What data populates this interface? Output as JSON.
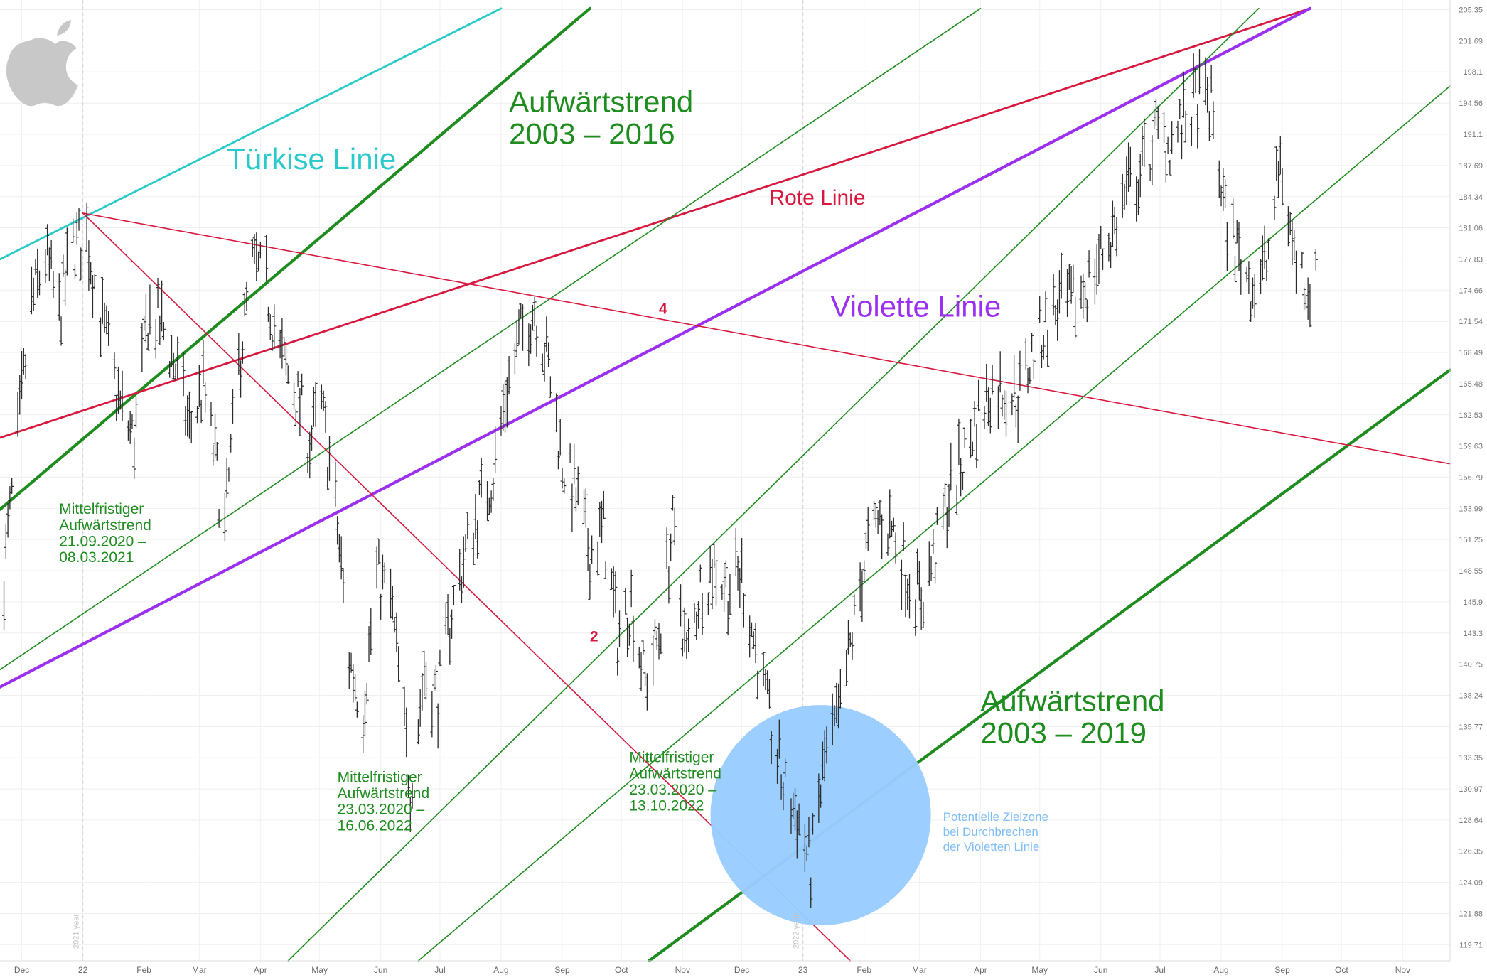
{
  "chart_data": {
    "type": "ohlc",
    "y_scale": "log",
    "ylim": [
      118.6,
      206.5
    ],
    "xlim": [
      "2021-11-20",
      "2023-11-25"
    ],
    "grid": true,
    "y_ticks": [
      "205.35",
      "201.69",
      "198.1",
      "194.56",
      "191.1",
      "187.69",
      "184.34",
      "181.06",
      "177.83",
      "174.66",
      "171.54",
      "168.49",
      "165.48",
      "162.53",
      "159.63",
      "156.79",
      "153.99",
      "151.25",
      "148.55",
      "145.9",
      "143.3",
      "140.75",
      "138.24",
      "135.77",
      "133.35",
      "130.97",
      "128.64",
      "126.35",
      "124.09",
      "121.88",
      "119.71"
    ],
    "x_ticks": [
      {
        "date": "2021-12-01",
        "label": "Dec"
      },
      {
        "date": "2022-01-01",
        "label": "22"
      },
      {
        "date": "2022-02-01",
        "label": "Feb"
      },
      {
        "date": "2022-03-01",
        "label": "Mar"
      },
      {
        "date": "2022-04-01",
        "label": "Apr"
      },
      {
        "date": "2022-05-01",
        "label": "May"
      },
      {
        "date": "2022-06-01",
        "label": "Jun"
      },
      {
        "date": "2022-07-01",
        "label": "Jul"
      },
      {
        "date": "2022-08-01",
        "label": "Aug"
      },
      {
        "date": "2022-09-01",
        "label": "Sep"
      },
      {
        "date": "2022-10-01",
        "label": "Oct"
      },
      {
        "date": "2022-11-01",
        "label": "Nov"
      },
      {
        "date": "2022-12-01",
        "label": "Dec"
      },
      {
        "date": "2023-01-01",
        "label": "23"
      },
      {
        "date": "2023-02-01",
        "label": "Feb"
      },
      {
        "date": "2023-03-01",
        "label": "Mar"
      },
      {
        "date": "2023-04-01",
        "label": "Apr"
      },
      {
        "date": "2023-05-01",
        "label": "May"
      },
      {
        "date": "2023-06-01",
        "label": "Jun"
      },
      {
        "date": "2023-07-01",
        "label": "Jul"
      },
      {
        "date": "2023-08-01",
        "label": "Aug"
      },
      {
        "date": "2023-09-01",
        "label": "Sep"
      },
      {
        "date": "2023-10-01",
        "label": "Oct"
      },
      {
        "date": "2023-11-01",
        "label": "Nov"
      }
    ],
    "year_markers": [
      {
        "date": "2022-01-01",
        "label": "2021 year"
      },
      {
        "date": "2023-01-01",
        "label": "2022 year"
      }
    ],
    "price_path": [
      [
        "2021-11-22",
        148
      ],
      [
        "2021-11-29",
        160
      ],
      [
        "2021-12-06",
        173
      ],
      [
        "2021-12-13",
        178
      ],
      [
        "2021-12-20",
        172
      ],
      [
        "2021-12-27",
        179
      ],
      [
        "2022-01-03",
        180
      ],
      [
        "2022-01-10",
        172
      ],
      [
        "2022-01-20",
        163
      ],
      [
        "2022-01-27",
        160
      ],
      [
        "2022-02-03",
        172
      ],
      [
        "2022-02-10",
        171
      ],
      [
        "2022-02-17",
        167
      ],
      [
        "2022-02-24",
        161
      ],
      [
        "2022-03-03",
        165
      ],
      [
        "2022-03-10",
        157
      ],
      [
        "2022-03-14",
        152
      ],
      [
        "2022-03-21",
        167
      ],
      [
        "2022-03-28",
        177
      ],
      [
        "2022-04-04",
        175
      ],
      [
        "2022-04-11",
        168
      ],
      [
        "2022-04-18",
        165
      ],
      [
        "2022-04-26",
        160
      ],
      [
        "2022-05-02",
        163
      ],
      [
        "2022-05-09",
        154
      ],
      [
        "2022-05-16",
        141
      ],
      [
        "2022-05-23",
        137
      ],
      [
        "2022-05-30",
        148
      ],
      [
        "2022-06-06",
        146
      ],
      [
        "2022-06-16",
        131
      ],
      [
        "2022-06-23",
        140
      ],
      [
        "2022-06-30",
        138
      ],
      [
        "2022-07-07",
        145
      ],
      [
        "2022-07-14",
        150
      ],
      [
        "2022-07-21",
        154
      ],
      [
        "2022-07-28",
        157
      ],
      [
        "2022-08-04",
        165
      ],
      [
        "2022-08-11",
        170
      ],
      [
        "2022-08-18",
        173
      ],
      [
        "2022-08-25",
        167
      ],
      [
        "2022-09-01",
        158
      ],
      [
        "2022-09-08",
        155
      ],
      [
        "2022-09-15",
        150
      ],
      [
        "2022-09-22",
        152
      ],
      [
        "2022-09-29",
        143
      ],
      [
        "2022-10-06",
        146
      ],
      [
        "2022-10-13",
        139
      ],
      [
        "2022-10-20",
        143
      ],
      [
        "2022-10-27",
        152
      ],
      [
        "2022-11-03",
        141
      ],
      [
        "2022-11-10",
        147
      ],
      [
        "2022-11-17",
        149
      ],
      [
        "2022-11-24",
        147
      ],
      [
        "2022-12-01",
        148
      ],
      [
        "2022-12-08",
        142
      ],
      [
        "2022-12-15",
        136
      ],
      [
        "2022-12-22",
        131
      ],
      [
        "2022-12-29",
        129
      ],
      [
        "2023-01-05",
        125
      ],
      [
        "2023-01-12",
        133
      ],
      [
        "2023-01-19",
        136
      ],
      [
        "2023-01-26",
        143
      ],
      [
        "2023-02-02",
        150
      ],
      [
        "2023-02-09",
        153
      ],
      [
        "2023-02-16",
        152
      ],
      [
        "2023-02-23",
        148
      ],
      [
        "2023-03-02",
        146
      ],
      [
        "2023-03-09",
        150
      ],
      [
        "2023-03-16",
        155
      ],
      [
        "2023-03-23",
        158
      ],
      [
        "2023-03-30",
        162
      ],
      [
        "2023-04-06",
        165
      ],
      [
        "2023-04-13",
        165
      ],
      [
        "2023-04-20",
        164
      ],
      [
        "2023-04-27",
        168
      ],
      [
        "2023-05-04",
        171
      ],
      [
        "2023-05-11",
        173
      ],
      [
        "2023-05-18",
        173
      ],
      [
        "2023-05-25",
        175
      ],
      [
        "2023-06-01",
        178
      ],
      [
        "2023-06-08",
        181
      ],
      [
        "2023-06-15",
        185
      ],
      [
        "2023-06-22",
        187
      ],
      [
        "2023-06-29",
        191
      ],
      [
        "2023-07-06",
        190
      ],
      [
        "2023-07-13",
        192
      ],
      [
        "2023-07-20",
        195
      ],
      [
        "2023-07-27",
        194
      ],
      [
        "2023-08-03",
        182
      ],
      [
        "2023-08-10",
        178
      ],
      [
        "2023-08-17",
        175
      ],
      [
        "2023-08-24",
        177
      ],
      [
        "2023-08-31",
        188
      ],
      [
        "2023-09-07",
        178
      ],
      [
        "2023-09-14",
        175
      ],
      [
        "2023-09-18",
        175
      ]
    ],
    "lines": [
      {
        "name": "Türkise Linie",
        "color": "#29c9cc",
        "weight": "medium",
        "points": [
          [
            "2021-11-20",
            177.8
          ],
          [
            "2022-08-01",
            205.5
          ]
        ]
      },
      {
        "name": "Aufwärtstrend 2003 – 2016",
        "color": "#1f8c1f",
        "weight": "heavy",
        "points": [
          [
            "2021-11-20",
            153.9
          ],
          [
            "2022-09-15",
            205.5
          ]
        ]
      },
      {
        "name": "Rote Linie",
        "color": "#d6173e",
        "weight": "medium",
        "points": [
          [
            "2021-11-20",
            160.4
          ],
          [
            "2023-09-15",
            205.5
          ]
        ]
      },
      {
        "name": "Violette Linie",
        "color": "#9b30f0",
        "weight": "heavy",
        "points": [
          [
            "2021-11-20",
            138.9
          ],
          [
            "2023-09-15",
            205.5
          ]
        ]
      },
      {
        "name": "Aufwärtstrend 2003 – 2019",
        "color": "#1f8c1f",
        "weight": "heavy",
        "points": [
          [
            "2022-10-15",
            118.6
          ],
          [
            "2023-11-25",
            166.8
          ]
        ]
      },
      {
        "name": "Mittelfristiger Aufwärtstrend 21.09.2020 – 08.03.2021",
        "color": "#1f8c1f",
        "weight": "thin",
        "points": [
          [
            "2021-11-20",
            140.3
          ],
          [
            "2023-04-01",
            205.5
          ]
        ]
      },
      {
        "name": "Mittelfristiger Aufwärtstrend 23.03.2020 – 16.06.2022",
        "color": "#1f8c1f",
        "weight": "thin",
        "points": [
          [
            "2022-04-15",
            118.6
          ],
          [
            "2023-08-20",
            205.5
          ]
        ]
      },
      {
        "name": "Mittelfristiger Aufwärtstrend 23.03.2020 – 13.10.2022",
        "color": "#1f8c1f",
        "weight": "thin",
        "points": [
          [
            "2022-06-20",
            118.6
          ],
          [
            "2023-11-25",
            196.5
          ]
        ]
      },
      {
        "name": "",
        "color": "#d6173e",
        "weight": "thin",
        "points": [
          [
            "2022-01-01",
            182.6
          ],
          [
            "2023-11-25",
            158.0
          ]
        ]
      },
      {
        "name": "",
        "color": "#d6173e",
        "weight": "thin",
        "points": [
          [
            "2022-01-01",
            182.6
          ],
          [
            "2023-01-25",
            118.6
          ]
        ]
      }
    ],
    "zone": {
      "label_lines": [
        "Potentielle Zielzone",
        "bei Durchbrechen",
        "der Violetten Linie"
      ],
      "center": [
        "2023-01-10",
        129.0
      ],
      "color": "#99ccff"
    },
    "annotations": [
      {
        "text_lines": [
          "Türkise Linie"
        ],
        "color": "#29c9cc",
        "size": "large",
        "at": [
          "2022-03-15",
          187.3
        ]
      },
      {
        "text_lines": [
          "Aufwärtstrend",
          "2003 – 2016"
        ],
        "color": "#1f8c1f",
        "size": "large",
        "at": [
          "2022-08-05",
          193.6
        ]
      },
      {
        "text_lines": [
          "Rote Linie"
        ],
        "color": "#d6173e",
        "size": "medium",
        "at": [
          "2022-12-15",
          183.5
        ]
      },
      {
        "text_lines": [
          "Violette Linie"
        ],
        "color": "#9b30f0",
        "size": "large",
        "at": [
          "2023-01-15",
          172.0
        ]
      },
      {
        "text_lines": [
          "Aufwärtstrend",
          "2003 – 2019"
        ],
        "color": "#1f8c1f",
        "size": "large",
        "at": [
          "2023-04-01",
          137.0
        ]
      },
      {
        "text_lines": [
          "Mittelfristiger",
          "Aufwärtstrend",
          "21.09.2020 –",
          "08.03.2021"
        ],
        "color": "#1f8c1f",
        "size": "small",
        "at": [
          "2021-12-20",
          153.5
        ]
      },
      {
        "text_lines": [
          "Mittelfristiger",
          "Aufwärtstrend",
          "23.03.2020 –",
          "16.06.2022"
        ],
        "color": "#1f8c1f",
        "size": "small",
        "at": [
          "2022-05-10",
          131.5
        ]
      },
      {
        "text_lines": [
          "Mittelfristiger",
          "Aufwärtstrend",
          "23.03.2020 –",
          "13.10.2022"
        ],
        "color": "#1f8c1f",
        "size": "small",
        "at": [
          "2022-10-05",
          133.0
        ]
      },
      {
        "text_lines": [
          "4"
        ],
        "color": "#d6173e",
        "size": "marker",
        "at": [
          "2022-10-20",
          172.3
        ]
      },
      {
        "text_lines": [
          "2"
        ],
        "color": "#d6173e",
        "size": "marker",
        "at": [
          "2022-09-15",
          142.6
        ]
      }
    ]
  },
  "logo": {
    "name": "apple-logo-icon",
    "color": "#c8c8c8"
  }
}
